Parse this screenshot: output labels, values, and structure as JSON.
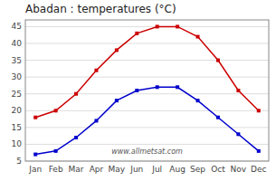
{
  "chart_data": {
    "type": "line",
    "title": "Abadan : temperatures (°C)",
    "categories": [
      "Jan",
      "Feb",
      "Mar",
      "Apr",
      "May",
      "Jun",
      "Jul",
      "Aug",
      "Sep",
      "Oct",
      "Nov",
      "Dec"
    ],
    "series": [
      {
        "color": "#cc0000",
        "marker": "square",
        "values": [
          18,
          20,
          25,
          32,
          38,
          43,
          45,
          45,
          42,
          35,
          26,
          20
        ]
      },
      {
        "color": "#0000cc",
        "marker": "square",
        "values": [
          7,
          8,
          12,
          17,
          23,
          26,
          27,
          27,
          23,
          18,
          13,
          8
        ]
      }
    ],
    "ylim": [
      5,
      47
    ],
    "yticks": [
      5,
      10,
      15,
      20,
      25,
      30,
      35,
      40,
      45
    ],
    "grid": true,
    "annotations": [
      "www.allmetsat.com"
    ]
  }
}
